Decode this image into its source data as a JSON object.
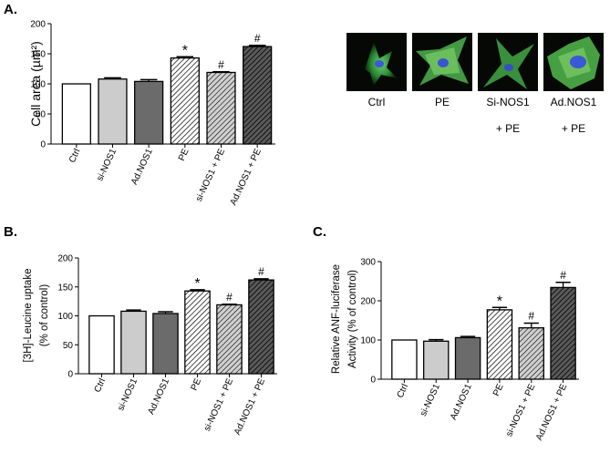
{
  "panels": {
    "a_letter": "A.",
    "b_letter": "B.",
    "c_letter": "C."
  },
  "micrographs": {
    "labels": [
      "Ctrl",
      "PE",
      "Si-NOS1",
      "Ad.NOS1"
    ],
    "sublabels": [
      "",
      "",
      "+ PE",
      "+ PE"
    ]
  },
  "chart_data": [
    {
      "type": "bar",
      "panel": "A.",
      "categories": [
        "Ctrl",
        "si-NOS1",
        "Ad.NOS1",
        "PE",
        "si-NOS1 + PE",
        "Ad.NOS1 + PE"
      ],
      "values": [
        100,
        108,
        104,
        143,
        119,
        162
      ],
      "errors": [
        0,
        2,
        3,
        2,
        1,
        2
      ],
      "annotations": [
        "",
        "",
        "",
        "*",
        "#",
        "#"
      ],
      "xlabel": "",
      "ylabel": "Cell area (µm²)",
      "ylim": [
        0,
        200
      ],
      "yticks": [
        0,
        50,
        100,
        150,
        200
      ],
      "grid": false
    },
    {
      "type": "bar",
      "panel": "B.",
      "categories": [
        "Ctrl",
        "si-NOS1",
        "Ad.NOS1",
        "PE",
        "si-NOS1 + PE",
        "Ad.NOS1 + PE"
      ],
      "values": [
        100,
        108,
        104,
        143,
        119,
        162
      ],
      "errors": [
        0,
        2,
        3,
        2,
        1,
        2
      ],
      "annotations": [
        "",
        "",
        "",
        "*",
        "#",
        "#"
      ],
      "xlabel": "",
      "ylabel": "[3H]-Leucine uptake",
      "ylabel2": "(% of control)",
      "ylim": [
        0,
        200
      ],
      "yticks": [
        0,
        50,
        100,
        150,
        200
      ],
      "grid": false
    },
    {
      "type": "bar",
      "panel": "C.",
      "categories": [
        "Ctrl",
        "si-NOS1",
        "Ad.NOS1",
        "PE",
        "si-NOS1 + PE",
        "Ad.NOS1 + PE"
      ],
      "values": [
        100,
        97,
        106,
        177,
        131,
        234
      ],
      "errors": [
        0,
        4,
        3,
        6,
        12,
        13
      ],
      "annotations": [
        "",
        "",
        "",
        "*",
        "#",
        "#"
      ],
      "xlabel": "",
      "ylabel": "Relative ANF-luciferase",
      "ylabel2": "Activity (% of control)",
      "ylim": [
        0,
        300
      ],
      "yticks": [
        0,
        100,
        200,
        300
      ],
      "grid": false
    }
  ]
}
